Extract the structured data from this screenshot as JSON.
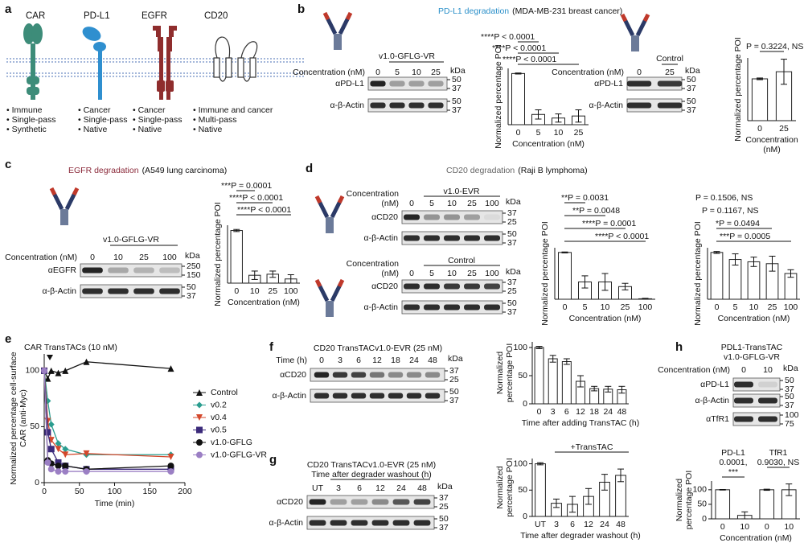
{
  "panel_labels": [
    "a",
    "b",
    "c",
    "d",
    "e",
    "f",
    "g",
    "h"
  ],
  "proteins": [
    {
      "name": "CAR",
      "notes": [
        "• Immune",
        "• Single-pass",
        "• Synthetic"
      ]
    },
    {
      "name": "PD-L1",
      "notes": [
        "• Cancer",
        "• Single-pass",
        "• Native"
      ]
    },
    {
      "name": "EGFR",
      "notes": [
        "• Cancer",
        "• Single-pass",
        "• Native"
      ]
    },
    {
      "name": "CD20",
      "notes": [
        "• Immune and cancer",
        "• Multi-pass",
        "• Native"
      ]
    }
  ],
  "headers": [
    {
      "target": "PD-L1 degradation",
      "cell": "(MDA-MB-231 breast cancer)"
    },
    {
      "target": "EGFR degradation",
      "cell": "(A549 lung carcinoma)"
    },
    {
      "target": "CD20 degradation",
      "cell": "(Raji B lymphoma)"
    }
  ],
  "blots": [
    {
      "title": "v1.0-GFLG-VR",
      "axis_label": "Concentration (nM)",
      "lanes": [
        "0",
        "5",
        "10",
        "25"
      ],
      "unit": "kDa",
      "rows": [
        {
          "label": "αPD-L1",
          "markers": [
            50,
            37
          ]
        },
        {
          "label": "α-β-Actin",
          "markers": [
            50,
            37
          ]
        }
      ]
    },
    {
      "title": "Control",
      "axis_label": "Concentration (nM)",
      "lanes": [
        "0",
        "25"
      ],
      "unit": "kDa",
      "rows": [
        {
          "label": "αPD-L1",
          "markers": [
            50,
            37
          ]
        },
        {
          "label": "α-β-Actin",
          "markers": [
            50,
            37
          ]
        }
      ]
    },
    {
      "title": "v1.0-GFLG-VR",
      "axis_label": "Concentration (nM)",
      "lanes": [
        "0",
        "10",
        "25",
        "100"
      ],
      "unit": "kDa",
      "rows": [
        {
          "label": "αEGFR",
          "markers": [
            250,
            150
          ]
        },
        {
          "label": "α-β-Actin",
          "markers": [
            50,
            37
          ]
        }
      ]
    },
    {
      "title": "v1.0-EVR",
      "axis_label": [
        "Concentration",
        "(nM)"
      ],
      "lanes": [
        "0",
        "5",
        "10",
        "25",
        "100"
      ],
      "unit": "kDa",
      "rows": [
        {
          "label": "αCD20",
          "markers": [
            37,
            25
          ]
        },
        {
          "label": "α-β-Actin",
          "markers": [
            50,
            37
          ]
        }
      ]
    },
    {
      "title": "Control",
      "axis_label": [
        "Concentration",
        "(nM)"
      ],
      "lanes": [
        "0",
        "5",
        "10",
        "25",
        "100"
      ],
      "unit": "kDa",
      "rows": [
        {
          "label": "αCD20",
          "markers": [
            37,
            25
          ]
        },
        {
          "label": "α-β-Actin",
          "markers": [
            50,
            37
          ]
        }
      ]
    },
    {
      "title": "CD20 TransTACv1.0-EVR (25 nM)",
      "axis_label": "Time (h)",
      "lanes": [
        "0",
        "3",
        "6",
        "12",
        "18",
        "24",
        "48"
      ],
      "unit": "kDa",
      "rows": [
        {
          "label": "αCD20",
          "markers": [
            37,
            25
          ]
        },
        {
          "label": "α-β-Actin",
          "markers": [
            50,
            37
          ]
        }
      ]
    },
    {
      "title": [
        "CD20 TransTACv1.0-EVR (25 nM)",
        "Time after degrader washout (h)"
      ],
      "lanes": [
        "UT",
        "3",
        "6",
        "12",
        "24",
        "48"
      ],
      "unit": "kDa",
      "rows": [
        {
          "label": "αCD20",
          "markers": [
            37,
            25
          ]
        },
        {
          "label": "α-β-Actin",
          "markers": [
            50,
            37
          ]
        }
      ]
    },
    {
      "title": [
        "PDL1-TransTAC",
        "v1.0-GFLG-VR"
      ],
      "axis_label": "Concentration (nM)",
      "lanes": [
        "0",
        "10"
      ],
      "unit": "kDa",
      "rows": [
        {
          "label": "αPD-L1",
          "markers": [
            50,
            37
          ]
        },
        {
          "label": "α-β-Actin",
          "markers": [
            50,
            37
          ]
        },
        {
          "label": "αTfR1",
          "markers": [
            100,
            75
          ]
        }
      ]
    }
  ],
  "chart_data": [
    {
      "type": "bar",
      "categories": [
        "0",
        "5",
        "10",
        "25"
      ],
      "values": [
        100,
        20,
        13,
        17
      ],
      "errors": [
        1,
        9,
        8,
        12
      ],
      "color": "#ffffff",
      "ylim": [
        0,
        110
      ],
      "ylabel": "Normalized percentage POI",
      "xlabel": "Concentration (nM)",
      "annotations": [
        "****P < 0.0001",
        "****P < 0.0001",
        "****P < 0.0001"
      ]
    },
    {
      "type": "bar",
      "categories": [
        "0",
        "25"
      ],
      "values": [
        100,
        117
      ],
      "errors": [
        2,
        30
      ],
      "color": "#ffffff",
      "ylim": [
        0,
        150
      ],
      "ylabel": "Normalized percentage POI",
      "xlabel": [
        "Concentration",
        "(nM)"
      ],
      "annotations": [
        "P = 0.3224, NS"
      ]
    },
    {
      "type": "bar",
      "categories": [
        "0",
        "10",
        "25",
        "100"
      ],
      "values": [
        100,
        15,
        17,
        8
      ],
      "errors": [
        2,
        8,
        6,
        8
      ],
      "color": "#ffffff",
      "ylim": [
        0,
        110
      ],
      "ylabel": "Normalized percentage POI",
      "xlabel": "Concentration (nM)",
      "annotations": [
        "***P = 0.0001",
        "****P < 0.0001",
        "****P < 0.0001"
      ]
    },
    {
      "type": "bar",
      "categories": [
        "0",
        "5",
        "10",
        "25",
        "100"
      ],
      "values": [
        100,
        37,
        37,
        27,
        1
      ],
      "errors": [
        1,
        13,
        18,
        7,
        1
      ],
      "color": "#ffffff",
      "ylim": [
        0,
        110
      ],
      "ylabel": "Normalized percentage POI",
      "xlabel": "Concentration (nM)",
      "annotations": [
        "**P = 0.0031",
        "**P = 0.0048",
        "****P = 0.0001",
        "****P < 0.0001"
      ]
    },
    {
      "type": "bar",
      "categories": [
        "0",
        "5",
        "10",
        "25",
        "100"
      ],
      "values": [
        100,
        85,
        80,
        76,
        55
      ],
      "errors": [
        2,
        12,
        10,
        16,
        8
      ],
      "color": "#ffffff",
      "ylim": [
        0,
        110
      ],
      "ylabel": "Normalized percentage POI",
      "xlabel": "Concentration (nM)",
      "annotations": [
        "P = 0.1506, NS",
        "P = 0.1167, NS",
        "*P = 0.0494",
        "***P = 0.0005"
      ]
    },
    {
      "type": "line",
      "annotations": [
        "CAR TransTACs (10 nM)"
      ],
      "xlabel": "Time (min)",
      "ylabel": [
        "Normalized percentage cell-surface",
        "CAR (anti-Myc)"
      ],
      "x": [
        0,
        5,
        10,
        20,
        30,
        60,
        180
      ],
      "xlim": [
        0,
        200
      ],
      "xticks": [
        0,
        50,
        100,
        150,
        200
      ],
      "ylim": [
        0,
        115
      ],
      "yticks": [
        0,
        50,
        100
      ],
      "series": [
        {
          "name": "Control",
          "color": "#111111",
          "marker": "triangle",
          "values": [
            100,
            93,
            100,
            98,
            100,
            108,
            102
          ]
        },
        {
          "name": "v0.2",
          "color": "#2a9d8f",
          "marker": "diamond",
          "values": [
            100,
            73,
            52,
            35,
            30,
            25,
            25
          ]
        },
        {
          "name": "v0.4",
          "color": "#d4482c",
          "marker": "triangle-down",
          "values": [
            100,
            55,
            38,
            30,
            25,
            26,
            23
          ]
        },
        {
          "name": "v0.5",
          "color": "#3b2a7a",
          "marker": "square",
          "values": [
            100,
            45,
            30,
            18,
            15,
            12,
            12
          ]
        },
        {
          "name": "v1.0-GFLG",
          "color": "#111111",
          "marker": "circle",
          "values": [
            100,
            20,
            17,
            15,
            15,
            12,
            15
          ]
        },
        {
          "name": "v1.0-GFLG-VR",
          "color": "#9b7fc4",
          "marker": "circle",
          "values": [
            100,
            18,
            12,
            10,
            10,
            10,
            10
          ]
        }
      ]
    },
    {
      "type": "bar",
      "categories": [
        "0",
        "3",
        "6",
        "12",
        "18",
        "24",
        "48"
      ],
      "values": [
        100,
        80,
        75,
        40,
        27,
        26,
        25
      ],
      "errors": [
        2,
        6,
        5,
        10,
        4,
        5,
        6
      ],
      "color": "#ffffff",
      "ylim": [
        0,
        110
      ],
      "yticks": [
        0,
        50,
        100
      ],
      "ylabel": [
        "Normalized",
        "percentage POI"
      ],
      "xlabel": "Time after adding TransTAC (h)"
    },
    {
      "type": "bar",
      "categories": [
        "UT",
        "3",
        "6",
        "12",
        "24",
        "48"
      ],
      "values": [
        100,
        25,
        23,
        38,
        65,
        78
      ],
      "errors": [
        2,
        8,
        15,
        15,
        15,
        12
      ],
      "color": "#ffffff",
      "ylim": [
        0,
        110
      ],
      "yticks": [
        0,
        50,
        100
      ],
      "ylabel": [
        "Normalized",
        "percentage POI"
      ],
      "xlabel": "Time after degrader washout (h)",
      "annotations": [
        "+TransTAC"
      ]
    },
    {
      "type": "bar",
      "categories": [
        "0",
        "10",
        "0",
        "10"
      ],
      "values": [
        100,
        12,
        100,
        100
      ],
      "errors": [
        1,
        12,
        2,
        20
      ],
      "color": "#ffffff",
      "ylim": [
        0,
        130
      ],
      "yticks": [
        0,
        50,
        100
      ],
      "ylabel": [
        "Normalized",
        "percentage POI"
      ],
      "xlabel": "Concentration (nM)",
      "annotations": [
        "PD-L1",
        "0.0001,",
        "***",
        "TfR1",
        "0.9030, NS"
      ]
    }
  ]
}
